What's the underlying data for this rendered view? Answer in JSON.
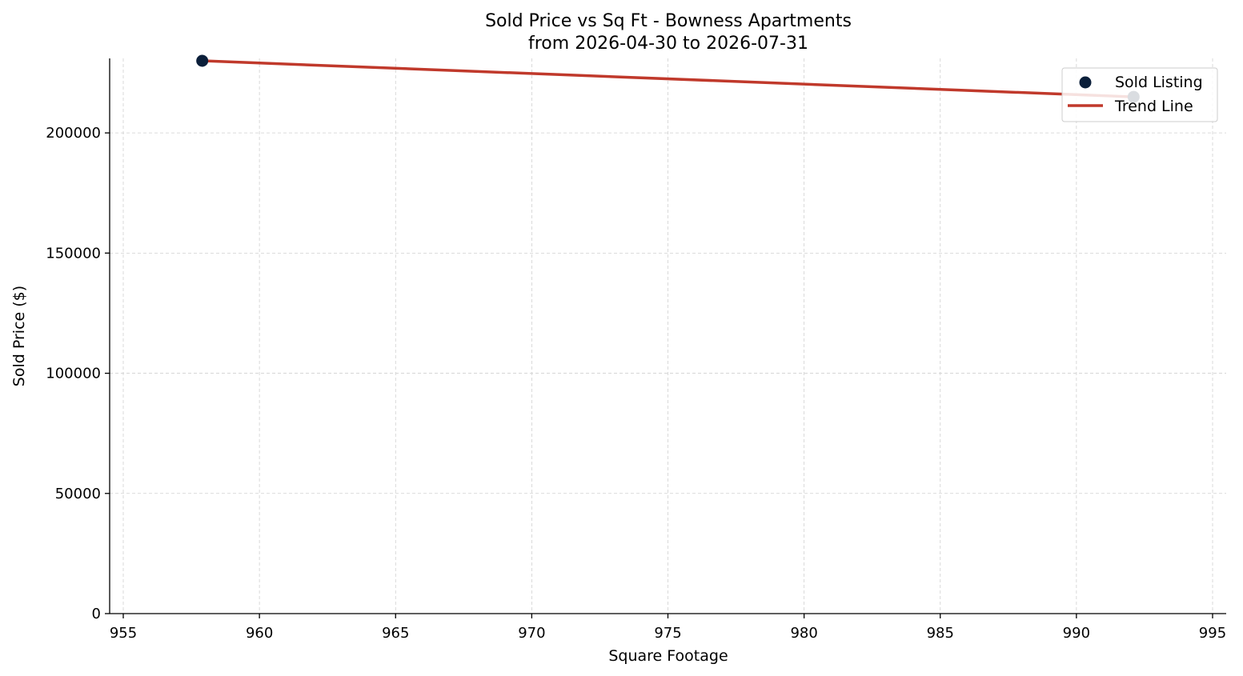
{
  "chart_data": {
    "type": "scatter",
    "title": "Sold Price vs Sq Ft - Bowness Apartments",
    "subtitle": "from 2026-04-30 to 2026-07-31",
    "xlabel": "Square Footage",
    "ylabel": "Sold Price ($)",
    "xlim": [
      954.5,
      995.5
    ],
    "ylim": [
      0,
      231000
    ],
    "x_ticks": [
      955,
      960,
      965,
      970,
      975,
      980,
      985,
      990,
      995
    ],
    "y_ticks": [
      0,
      50000,
      100000,
      150000,
      200000
    ],
    "grid": true,
    "legend_position": "top-right",
    "series": [
      {
        "name": "Sold Listing",
        "kind": "scatter",
        "color": "#0b1f3a",
        "points": [
          {
            "x": 957.9,
            "y": 230000
          },
          {
            "x": 992.1,
            "y": 215000
          }
        ]
      },
      {
        "name": "Trend Line",
        "kind": "line",
        "color": "#c0392b",
        "points": [
          {
            "x": 957.9,
            "y": 230000
          },
          {
            "x": 992.1,
            "y": 215000
          }
        ]
      }
    ]
  }
}
